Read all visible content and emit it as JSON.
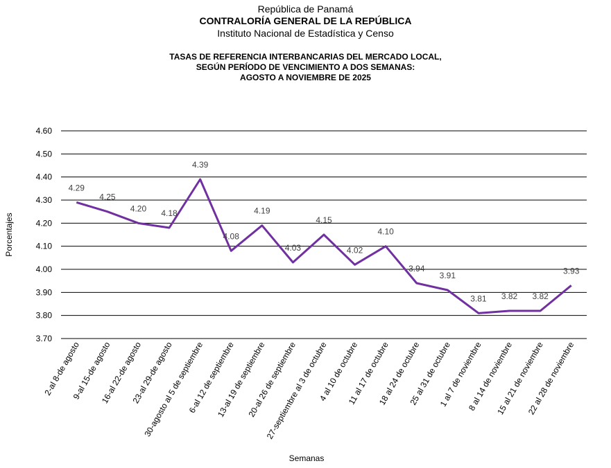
{
  "header": {
    "line1": "República de Panamá",
    "line2": "CONTRALORÍA GENERAL DE LA REPÚBLICA",
    "line3": "Instituto Nacional de Estadística y Censo"
  },
  "chart_data": {
    "type": "line",
    "title": [
      "TASAS DE REFERENCIA  INTERBANCARIAS DEL MERCADO LOCAL,",
      "SEGÚN PERÍODO DE VENCIMIENTO A DOS SEMANAS:",
      "AGOSTO A NOVIEMBRE  DE 2025"
    ],
    "xlabel": "Semanas",
    "ylabel": "Porcentajes",
    "ylim": [
      3.7,
      4.6
    ],
    "yticks": [
      "3.70",
      "3.80",
      "3.90",
      "4.00",
      "4.10",
      "4.20",
      "4.30",
      "4.40",
      "4.50",
      "4.60"
    ],
    "grid": true,
    "line_color": "#7030A0",
    "categories": [
      "2-al 8-de agosto",
      "9-al 15-de agosto",
      "16-al 22-de agosto",
      "23-al 29-de agosto",
      "30-agosto al 5 de septiembre",
      "6-al 12 de septiembre",
      "13-al 19 de septiembre",
      "20-al 26 de septiembre",
      "27-septiembre al 3 de octubre",
      "4 al 10 de octubre",
      "11 al 17 de octubre",
      "18 al 24 de octubre",
      "25 al 31 de octubre",
      "1 al 7 de noviembre",
      "8 al 14 de noviembre",
      "15 al 21 de noviembre",
      "22 al 28 de noviembre"
    ],
    "values": [
      4.29,
      4.25,
      4.2,
      4.18,
      4.39,
      4.08,
      4.19,
      4.03,
      4.15,
      4.02,
      4.1,
      3.94,
      3.91,
      3.81,
      3.82,
      3.82,
      3.93
    ],
    "data_labels": [
      "4.29",
      "4.25",
      "4.20",
      "4.18",
      "4.39",
      "4.08",
      "4.19",
      "4.03",
      "4.15",
      "4.02",
      "4.10",
      "3.94",
      "3.91",
      "3.81",
      "3.82",
      "3.82",
      "3.93"
    ]
  }
}
